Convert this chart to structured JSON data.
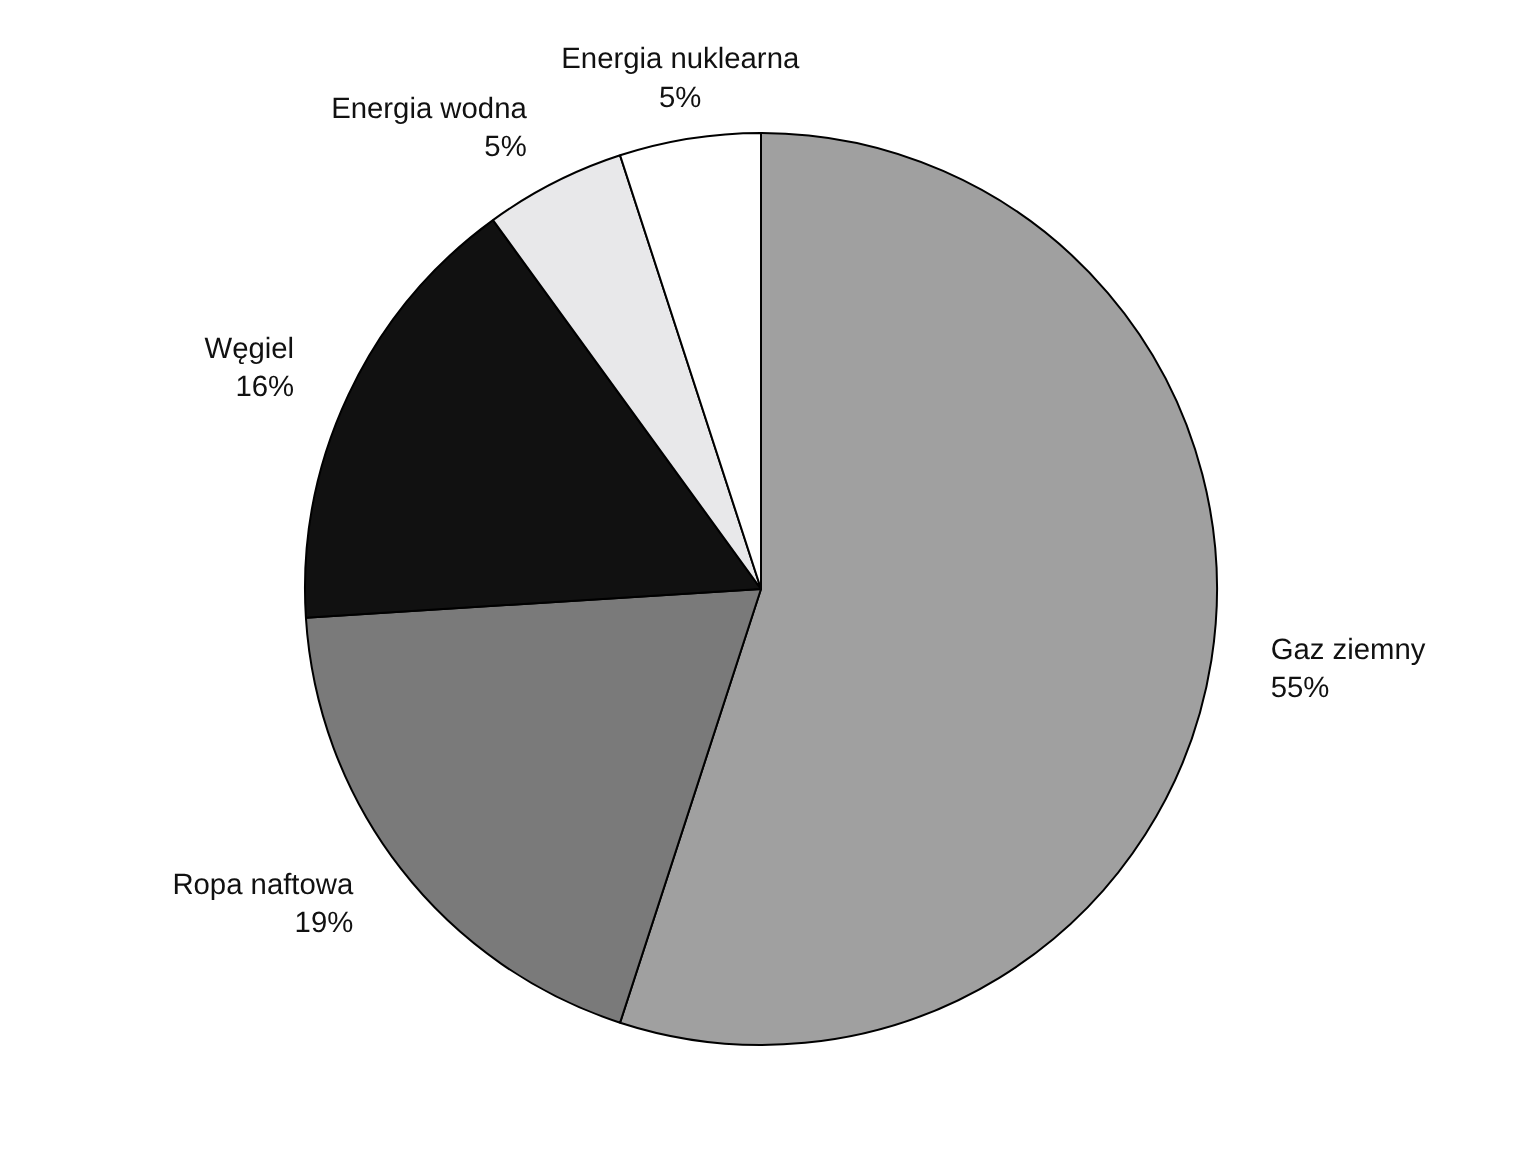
{
  "chart_data": {
    "type": "pie",
    "categories": [
      "Gaz ziemny",
      "Ropa naftowa",
      "Węgiel",
      "Energia wodna",
      "Energia nuklearna"
    ],
    "values": [
      55,
      19,
      16,
      5,
      5
    ],
    "colors": [
      "#a0a0a0",
      "#7a7a7a",
      "#111111",
      "#e8e8ea",
      "#ffffff"
    ],
    "value_labels": [
      "55%",
      "19%",
      "16%",
      "5%",
      "5%"
    ]
  }
}
